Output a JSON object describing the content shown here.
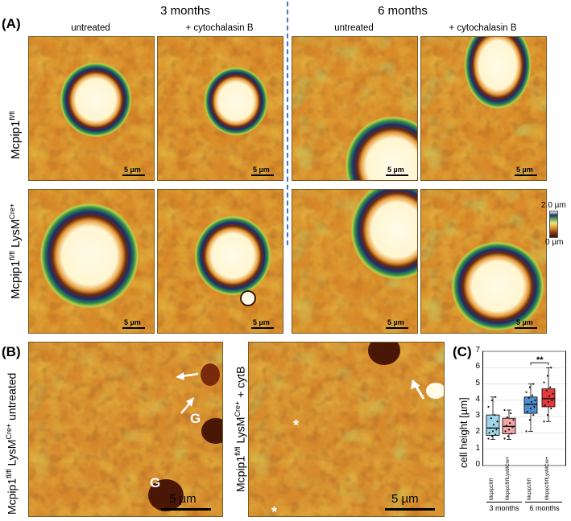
{
  "panel_a": {
    "letter": "(A)",
    "group_headers": [
      "3 months",
      "6 months"
    ],
    "column_labels": [
      "untreated",
      "+ cytochalasin B",
      "untreated",
      "+ cytochalasin B"
    ],
    "row_labels": [
      {
        "base": "Mcpip1",
        "sup": "fl/fl",
        "rest": ""
      },
      {
        "base": "Mcpip1",
        "sup": "fl/fl",
        "rest": " LysM",
        "sup2": "Cre+"
      }
    ],
    "scale_label": "5 µm",
    "colorbar": {
      "max": "2.0 µm",
      "min": "0 µm"
    }
  },
  "panel_b": {
    "letter": "(B)",
    "left_label": {
      "base": "Mcpip1",
      "sup": "fl/fl",
      "rest": " LysM",
      "sup2": "Cre+",
      "suffix": " untreated"
    },
    "right_label": {
      "base": "Mcpip1",
      "sup": "fl/fl",
      "rest": " LysM",
      "sup2": "Cre+",
      "suffix": " + cytB"
    },
    "granule_label": "G",
    "asterisk": "*",
    "scale_label": "5 µm"
  },
  "panel_c": {
    "letter": "(C)",
    "significance": "**",
    "group_labels": [
      "3 months",
      "6 months"
    ]
  },
  "chart_data": {
    "type": "box",
    "ylabel": "cell height [µm]",
    "ylim": [
      0,
      7
    ],
    "yticks": [
      0,
      1,
      2,
      3,
      4,
      5,
      6,
      7
    ],
    "grid": true,
    "categories": [
      "Mcpip1fl/fl",
      "Mcpip1fl/flLysMCre+",
      "Mcpip1fl/fl",
      "Mcpip1fl/flLysMCre+"
    ],
    "groups": [
      "3 months",
      "3 months",
      "6 months",
      "6 months"
    ],
    "colors": [
      "#9ed6ea",
      "#f0a6a6",
      "#4e8fd0",
      "#e33a3a"
    ],
    "boxes": [
      {
        "min": 1.6,
        "q1": 1.85,
        "median": 2.3,
        "q3": 3.1,
        "max": 4.2
      },
      {
        "min": 1.6,
        "q1": 1.95,
        "median": 2.4,
        "q3": 2.9,
        "max": 3.4
      },
      {
        "min": 2.1,
        "q1": 3.2,
        "median": 3.75,
        "q3": 4.2,
        "max": 5.0
      },
      {
        "min": 2.7,
        "q1": 3.6,
        "median": 4.1,
        "q3": 4.7,
        "max": 6.0
      }
    ],
    "points": [
      [
        1.65,
        1.8,
        1.9,
        2.0,
        2.1,
        2.2,
        2.3,
        2.5,
        2.7,
        2.9,
        3.1,
        3.6,
        4.0,
        4.2
      ],
      [
        1.65,
        1.8,
        1.95,
        2.1,
        2.2,
        2.35,
        2.45,
        2.6,
        2.8,
        2.95,
        3.2,
        3.4
      ],
      [
        2.1,
        2.8,
        3.1,
        3.3,
        3.5,
        3.6,
        3.75,
        3.9,
        4.0,
        4.15,
        4.3,
        4.5,
        4.8,
        5.0
      ],
      [
        2.7,
        3.1,
        3.5,
        3.7,
        3.9,
        4.0,
        4.1,
        4.25,
        4.4,
        4.6,
        4.8,
        5.1,
        5.5,
        6.0
      ]
    ],
    "annotations": [
      {
        "text": "**",
        "between": [
          3,
          4
        ]
      }
    ]
  }
}
